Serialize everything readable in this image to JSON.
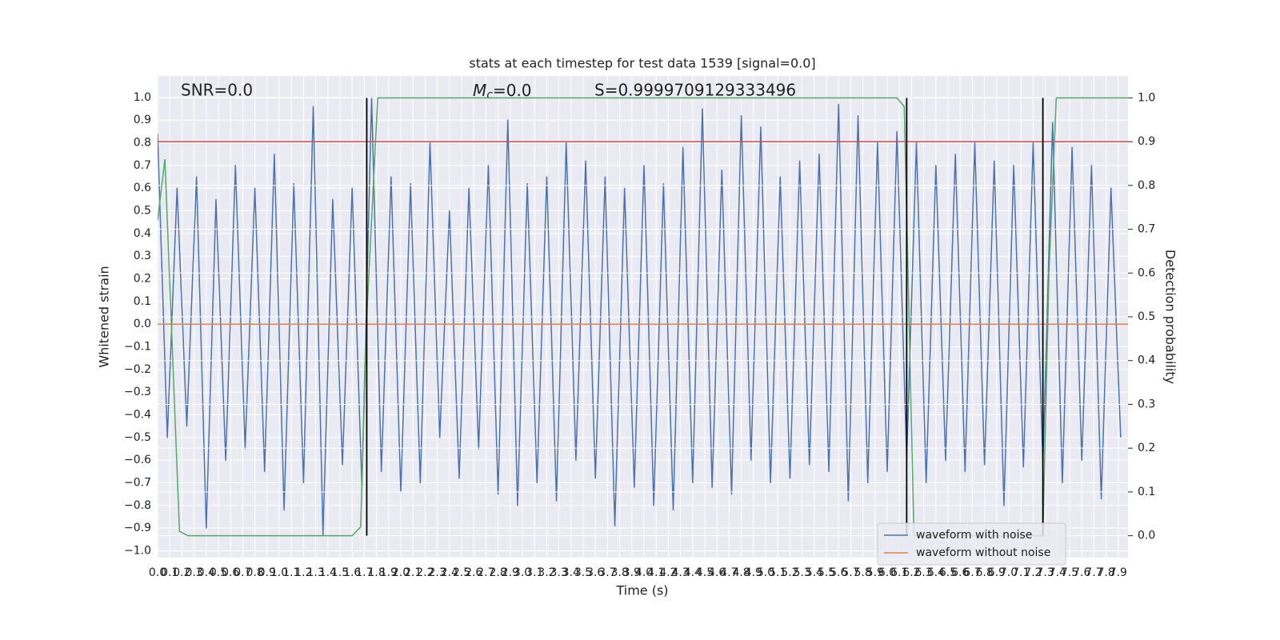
{
  "chart_data": {
    "type": "line",
    "title": "stats at each timestep for test data 1539 [signal=0.0]",
    "xlabel": "Time (s)",
    "ylabel": "Whitened strain",
    "y2label": "Detection probability",
    "annotations": {
      "snr": "SNR=0.0",
      "mc": {
        "symbol": "M",
        "subscript": "c",
        "text": "=0.0"
      },
      "s": "S=0.9999709129333496"
    },
    "grid": true,
    "legend": "lower right",
    "xlim": [
      0,
      7.98
    ],
    "ylim": [
      -1.03,
      1.095
    ],
    "y2lim": [
      -0.05,
      1.05
    ],
    "xticks": [
      {
        "value": 0,
        "label": "0.0"
      },
      {
        "value": 0.1,
        "label": "0.1"
      },
      {
        "value": 0.2,
        "label": "0.2"
      },
      {
        "value": 0.3,
        "label": "0.3"
      },
      {
        "value": 0.4,
        "label": "0.4"
      },
      {
        "value": 0.5,
        "label": "0.5"
      },
      {
        "value": 0.6,
        "label": "0.6"
      },
      {
        "value": 0.7,
        "label": "0.7"
      },
      {
        "value": 0.8,
        "label": "0.8"
      },
      {
        "value": 0.9,
        "label": "0.9"
      },
      {
        "value": 1,
        "label": "1.0"
      },
      {
        "value": 1.1,
        "label": "1.1"
      },
      {
        "value": 1.2,
        "label": "1.2"
      },
      {
        "value": 1.3,
        "label": "1.3"
      },
      {
        "value": 1.4,
        "label": "1.4"
      },
      {
        "value": 1.5,
        "label": "1.5"
      },
      {
        "value": 1.6,
        "label": "1.6"
      },
      {
        "value": 1.7,
        "label": "1.7"
      },
      {
        "value": 1.8,
        "label": "1.8"
      },
      {
        "value": 1.9,
        "label": "1.9"
      },
      {
        "value": 2,
        "label": "2.0"
      },
      {
        "value": 2.1,
        "label": "2.1"
      },
      {
        "value": 2.2,
        "label": "2.2"
      },
      {
        "value": 2.3,
        "label": "2.3"
      },
      {
        "value": 2.4,
        "label": "2.4"
      },
      {
        "value": 2.5,
        "label": "2.5"
      },
      {
        "value": 2.6,
        "label": "2.6"
      },
      {
        "value": 2.7,
        "label": "2.7"
      },
      {
        "value": 2.8,
        "label": "2.8"
      },
      {
        "value": 2.9,
        "label": "2.9"
      },
      {
        "value": 3,
        "label": "3.0"
      },
      {
        "value": 3.1,
        "label": "3.1"
      },
      {
        "value": 3.2,
        "label": "3.2"
      },
      {
        "value": 3.3,
        "label": "3.3"
      },
      {
        "value": 3.4,
        "label": "3.4"
      },
      {
        "value": 3.5,
        "label": "3.5"
      },
      {
        "value": 3.6,
        "label": "3.6"
      },
      {
        "value": 3.7,
        "label": "3.7"
      },
      {
        "value": 3.8,
        "label": "3.8"
      },
      {
        "value": 3.9,
        "label": "3.9"
      },
      {
        "value": 4,
        "label": "4.0"
      },
      {
        "value": 4.1,
        "label": "4.1"
      },
      {
        "value": 4.2,
        "label": "4.2"
      },
      {
        "value": 4.3,
        "label": "4.3"
      },
      {
        "value": 4.4,
        "label": "4.4"
      },
      {
        "value": 4.5,
        "label": "4.5"
      },
      {
        "value": 4.6,
        "label": "4.6"
      },
      {
        "value": 4.7,
        "label": "4.7"
      },
      {
        "value": 4.8,
        "label": "4.8"
      },
      {
        "value": 4.9,
        "label": "4.9"
      },
      {
        "value": 5,
        "label": "5.0"
      },
      {
        "value": 5.1,
        "label": "5.1"
      },
      {
        "value": 5.2,
        "label": "5.2"
      },
      {
        "value": 5.3,
        "label": "5.3"
      },
      {
        "value": 5.4,
        "label": "5.4"
      },
      {
        "value": 5.5,
        "label": "5.5"
      },
      {
        "value": 5.6,
        "label": "5.6"
      },
      {
        "value": 5.7,
        "label": "5.7"
      },
      {
        "value": 5.8,
        "label": "5.8"
      },
      {
        "value": 5.9,
        "label": "5.9"
      },
      {
        "value": 6,
        "label": "6.0"
      },
      {
        "value": 6.1,
        "label": "6.1"
      },
      {
        "value": 6.2,
        "label": "6.2"
      },
      {
        "value": 6.3,
        "label": "6.3"
      },
      {
        "value": 6.4,
        "label": "6.4"
      },
      {
        "value": 6.5,
        "label": "6.5"
      },
      {
        "value": 6.6,
        "label": "6.6"
      },
      {
        "value": 6.7,
        "label": "6.7"
      },
      {
        "value": 6.8,
        "label": "6.8"
      },
      {
        "value": 6.9,
        "label": "6.9"
      },
      {
        "value": 7,
        "label": "7.0"
      },
      {
        "value": 7.1,
        "label": "7.1"
      },
      {
        "value": 7.2,
        "label": "7.2"
      },
      {
        "value": 7.3,
        "label": "7.3"
      },
      {
        "value": 7.4,
        "label": "7.4"
      },
      {
        "value": 7.5,
        "label": "7.5"
      },
      {
        "value": 7.6,
        "label": "7.6"
      },
      {
        "value": 7.7,
        "label": "7.7"
      },
      {
        "value": 7.8,
        "label": "7.8"
      },
      {
        "value": 7.9,
        "label": "7.9"
      }
    ],
    "yticks": [
      {
        "value": -1,
        "label": "−1.0"
      },
      {
        "value": -0.9,
        "label": "−0.9"
      },
      {
        "value": -0.8,
        "label": "−0.8"
      },
      {
        "value": -0.7,
        "label": "−0.7"
      },
      {
        "value": -0.6,
        "label": "−0.6"
      },
      {
        "value": -0.5,
        "label": "−0.5"
      },
      {
        "value": -0.4,
        "label": "−0.4"
      },
      {
        "value": -0.3,
        "label": "−0.3"
      },
      {
        "value": -0.2,
        "label": "−0.2"
      },
      {
        "value": -0.1,
        "label": "−0.1"
      },
      {
        "value": 0,
        "label": "0.0"
      },
      {
        "value": 0.1,
        "label": "0.1"
      },
      {
        "value": 0.2,
        "label": "0.2"
      },
      {
        "value": 0.3,
        "label": "0.3"
      },
      {
        "value": 0.4,
        "label": "0.4"
      },
      {
        "value": 0.5,
        "label": "0.5"
      },
      {
        "value": 0.6,
        "label": "0.6"
      },
      {
        "value": 0.7,
        "label": "0.7"
      },
      {
        "value": 0.8,
        "label": "0.8"
      },
      {
        "value": 0.9,
        "label": "0.9"
      },
      {
        "value": 1,
        "label": "1.0"
      }
    ],
    "y2ticks": [
      {
        "value": 0,
        "label": "0.0"
      },
      {
        "value": 0.1,
        "label": "0.1"
      },
      {
        "value": 0.2,
        "label": "0.2"
      },
      {
        "value": 0.3,
        "label": "0.3"
      },
      {
        "value": 0.4,
        "label": "0.4"
      },
      {
        "value": 0.5,
        "label": "0.5"
      },
      {
        "value": 0.6,
        "label": "0.6"
      },
      {
        "value": 0.7,
        "label": "0.7"
      },
      {
        "value": 0.8,
        "label": "0.8"
      },
      {
        "value": 0.9,
        "label": "0.9"
      },
      {
        "value": 1,
        "label": "1.0"
      }
    ],
    "series": [
      {
        "name": "waveform with noise",
        "color": "#4c72b0",
        "x": [
          0,
          0.08,
          0.16,
          0.24,
          0.32,
          0.4,
          0.48,
          0.56,
          0.64,
          0.72,
          0.8,
          0.88,
          0.96,
          1.04,
          1.12,
          1.2,
          1.28,
          1.36,
          1.44,
          1.52,
          1.6,
          1.68,
          1.76,
          1.84,
          1.92,
          2,
          2.08,
          2.16,
          2.24,
          2.32,
          2.4,
          2.48,
          2.56,
          2.64,
          2.72,
          2.8,
          2.88,
          2.96,
          3.04,
          3.12,
          3.2,
          3.28,
          3.36,
          3.44,
          3.52,
          3.6,
          3.68,
          3.76,
          3.84,
          3.92,
          4,
          4.08,
          4.16,
          4.24,
          4.32,
          4.4,
          4.48,
          4.56,
          4.64,
          4.72,
          4.8,
          4.88,
          4.96,
          5.04,
          5.12,
          5.2,
          5.28,
          5.36,
          5.44,
          5.52,
          5.6,
          5.68,
          5.76,
          5.84,
          5.92,
          6,
          6.08,
          6.16,
          6.24,
          6.32,
          6.4,
          6.48,
          6.56,
          6.64,
          6.72,
          6.8,
          6.88,
          6.96,
          7.04,
          7.12,
          7.2,
          7.28,
          7.36,
          7.44,
          7.52,
          7.6,
          7.68,
          7.76,
          7.84,
          7.92
        ],
        "values": [
          0.84,
          -0.5,
          0.6,
          -0.45,
          0.65,
          -0.9,
          0.55,
          -0.6,
          0.7,
          -0.55,
          0.6,
          -0.65,
          0.75,
          -0.82,
          0.62,
          -0.7,
          0.96,
          -0.93,
          0.55,
          -0.62,
          0.6,
          -0.72,
          1.0,
          -0.65,
          0.65,
          -0.74,
          0.62,
          -0.7,
          0.8,
          -0.5,
          0.5,
          -0.68,
          0.6,
          -0.55,
          0.7,
          -0.75,
          0.9,
          -0.8,
          0.62,
          -0.7,
          0.65,
          -0.78,
          0.8,
          -0.6,
          0.72,
          -0.68,
          0.65,
          -0.89,
          0.6,
          -0.72,
          0.7,
          -0.8,
          0.62,
          -0.82,
          0.78,
          -0.7,
          0.95,
          -0.72,
          0.68,
          -0.75,
          0.92,
          -0.6,
          0.87,
          -0.7,
          0.65,
          -0.68,
          0.72,
          -0.62,
          0.75,
          -0.65,
          0.97,
          -0.78,
          0.92,
          -0.7,
          0.8,
          -0.65,
          0.85,
          -0.6,
          0.8,
          -0.7,
          0.7,
          -0.6,
          0.75,
          -0.65,
          0.8,
          -0.62,
          0.72,
          -0.8,
          0.7,
          -0.63,
          0.8,
          -0.62,
          0.89,
          -0.7,
          0.78,
          -0.6,
          0.7,
          -0.77,
          0.6,
          -0.5
        ]
      },
      {
        "name": "waveform without noise",
        "color": "#dd8452",
        "x": [
          0,
          7.98
        ],
        "values": [
          0,
          0
        ]
      }
    ],
    "probability": {
      "color": "#55a868",
      "axis": "y2",
      "x": [
        0,
        0.06,
        0.18,
        0.25,
        1.6,
        1.67,
        1.72,
        1.81,
        6.08,
        6.14,
        6.22,
        7.28,
        7.33,
        7.39,
        7.98
      ],
      "values": [
        0.72,
        0.86,
        0.01,
        0,
        0,
        0.02,
        0.5,
        1,
        1,
        0.98,
        0,
        0,
        0.6,
        1,
        1
      ]
    },
    "threshold": {
      "value": 0.9,
      "axis": "y2",
      "color": "#c44e52"
    },
    "vlines": {
      "x": [
        1.72,
        6.16,
        7.28
      ],
      "ymin": 0,
      "ymax": 1,
      "axis": "y2",
      "color": "#000000"
    }
  }
}
